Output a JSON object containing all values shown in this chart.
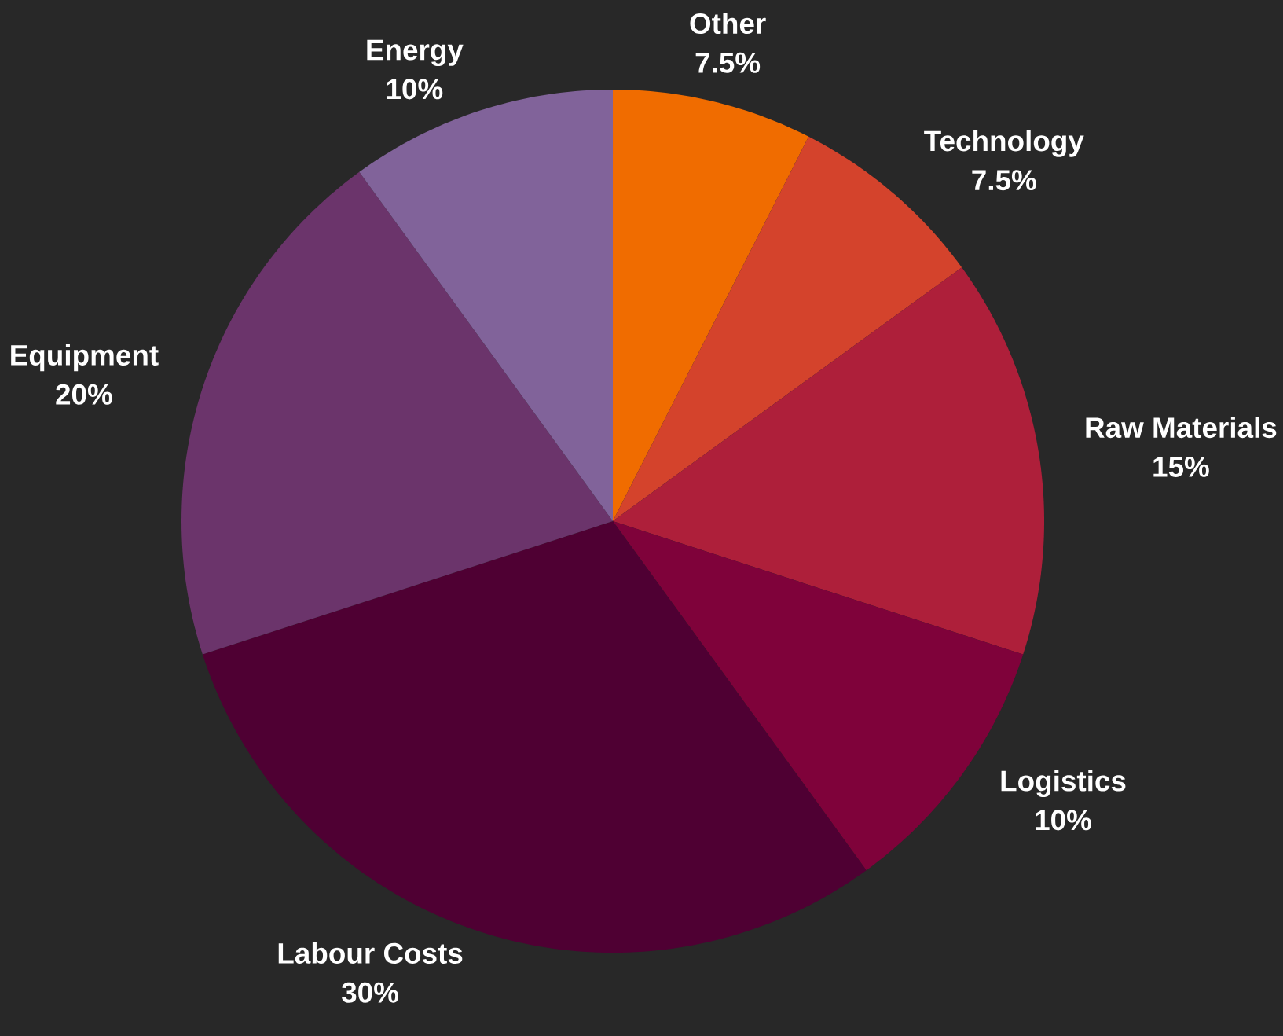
{
  "chart_data": {
    "type": "pie",
    "categories": [
      "Other",
      "Technology",
      "Raw Materials",
      "Logistics",
      "Labour Costs",
      "Equipment",
      "Energy"
    ],
    "values": [
      7.5,
      7.5,
      15,
      10,
      30,
      20,
      10
    ],
    "value_labels": [
      "7.5%",
      "7.5%",
      "15%",
      "10%",
      "30%",
      "20%",
      "10%"
    ],
    "colors": [
      "#f06c00",
      "#d4432c",
      "#ae1f3a",
      "#7f023a",
      "#4f0033",
      "#6b346b",
      "#81639a"
    ]
  }
}
